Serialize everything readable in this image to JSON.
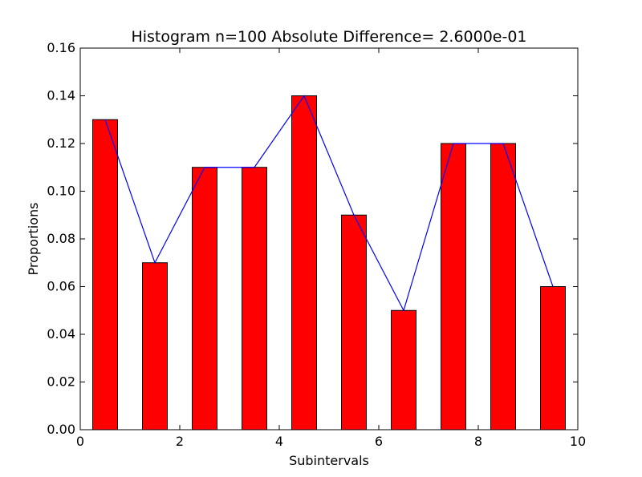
{
  "chart_data": {
    "type": "bar",
    "title": "Histogram   n=100   Absolute Difference= 2.6000e-01",
    "xlabel": "Subintervals",
    "ylabel": "Proportions",
    "xlim": [
      0,
      10
    ],
    "ylim": [
      0,
      0.16
    ],
    "xticks": [
      "0",
      "2",
      "4",
      "6",
      "8",
      "10"
    ],
    "yticks": [
      "0.00",
      "0.02",
      "0.04",
      "0.06",
      "0.08",
      "0.10",
      "0.12",
      "0.14",
      "0.16"
    ],
    "bars": {
      "x": [
        0.5,
        1.5,
        2.5,
        3.5,
        4.5,
        5.5,
        6.5,
        7.5,
        8.5,
        9.5
      ],
      "width": 0.5,
      "values": [
        0.13,
        0.07,
        0.11,
        0.11,
        0.14,
        0.09,
        0.05,
        0.12,
        0.12,
        0.06
      ],
      "color": "#ff0000"
    },
    "line": {
      "x": [
        0.5,
        1.5,
        2.5,
        3.5,
        4.5,
        5.5,
        6.5,
        7.5,
        8.5,
        9.5
      ],
      "values": [
        0.13,
        0.07,
        0.11,
        0.11,
        0.14,
        0.09,
        0.05,
        0.12,
        0.12,
        0.06
      ],
      "color": "#0000ff"
    },
    "grid": false,
    "legend": "none"
  }
}
